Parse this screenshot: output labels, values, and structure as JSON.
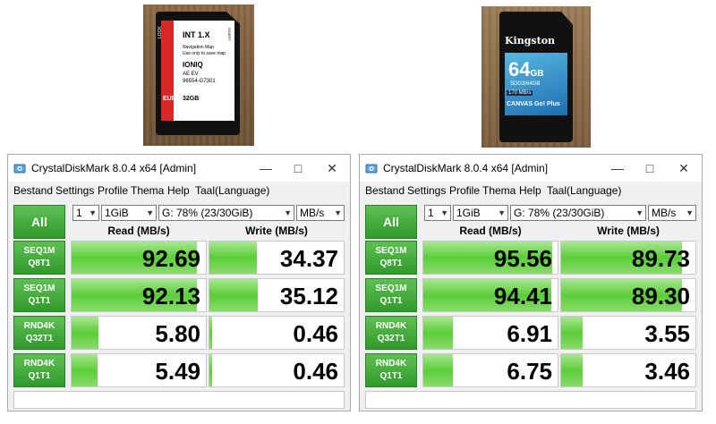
{
  "photos": {
    "left_card": {
      "lines": [
        "INT 1.X",
        "Navigation Map",
        "Use only to save map",
        "IONIQ",
        "AE EV",
        "96554-G7301",
        "EUR",
        "32GB",
        "LOCK",
        "INSERT"
      ]
    },
    "right_card": {
      "brand": "Kingston",
      "capacity": "64",
      "capacity_unit": "GB",
      "model": "SDG3/64GB",
      "speed": "170 MB/s",
      "series": "CANVAS Go! Plus"
    }
  },
  "windows": [
    {
      "title": "CrystalDiskMark 8.0.4 x64 [Admin]",
      "menu": [
        "Bestand",
        "Settings",
        "Profile",
        "Thema",
        "Help",
        "Taal(Language)"
      ],
      "all_label": "All",
      "count": "1",
      "size": "1GiB",
      "drive": "G: 78% (23/30GiB)",
      "unit": "MB/s",
      "read_header": "Read (MB/s)",
      "write_header": "Write (MB/s)",
      "rows": [
        {
          "label1": "SEQ1M",
          "label2": "Q8T1",
          "read": "92.69",
          "write": "34.37",
          "read_fill": 0.93,
          "write_fill": 0.35
        },
        {
          "label1": "SEQ1M",
          "label2": "Q1T1",
          "read": "92.13",
          "write": "35.12",
          "read_fill": 0.93,
          "write_fill": 0.36
        },
        {
          "label1": "RND4K",
          "label2": "Q32T1",
          "read": "5.80",
          "write": "0.46",
          "read_fill": 0.2,
          "write_fill": 0.02
        },
        {
          "label1": "RND4K",
          "label2": "Q1T1",
          "read": "5.49",
          "write": "0.46",
          "read_fill": 0.19,
          "write_fill": 0.02
        }
      ]
    },
    {
      "title": "CrystalDiskMark 8.0.4 x64 [Admin]",
      "menu": [
        "Bestand",
        "Settings",
        "Profile",
        "Thema",
        "Help",
        "Taal(Language)"
      ],
      "all_label": "All",
      "count": "1",
      "size": "1GiB",
      "drive": "G: 78% (23/30GiB)",
      "unit": "MB/s",
      "read_header": "Read (MB/s)",
      "write_header": "Write (MB/s)",
      "rows": [
        {
          "label1": "SEQ1M",
          "label2": "Q8T1",
          "read": "95.56",
          "write": "89.73",
          "read_fill": 0.96,
          "write_fill": 0.9
        },
        {
          "label1": "SEQ1M",
          "label2": "Q1T1",
          "read": "94.41",
          "write": "89.30",
          "read_fill": 0.95,
          "write_fill": 0.9
        },
        {
          "label1": "RND4K",
          "label2": "Q32T1",
          "read": "6.91",
          "write": "3.55",
          "read_fill": 0.22,
          "write_fill": 0.16
        },
        {
          "label1": "RND4K",
          "label2": "Q1T1",
          "read": "6.75",
          "write": "3.46",
          "read_fill": 0.22,
          "write_fill": 0.16
        }
      ]
    }
  ]
}
